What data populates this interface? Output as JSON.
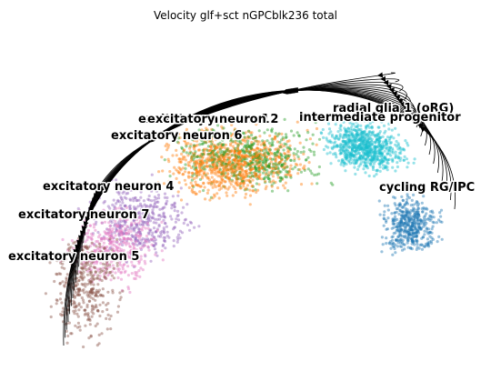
{
  "chart_data": {
    "type": "scatter",
    "title": "Velocity glf+sct nGPCblk236 total",
    "xlabel": "",
    "ylabel": "",
    "axes_visible": false,
    "grid": false,
    "legend": "on-data",
    "overlay": "velocity streamlines with arrowheads",
    "clusters": [
      {
        "name": "radial glia 1 (oRG)",
        "color": "#1fbecf",
        "center": [
          7.1,
          6.4
        ]
      },
      {
        "name": "intermediate progenitor",
        "color": "#17becf",
        "center": [
          7.5,
          6.1
        ]
      },
      {
        "name": "cycling RG/IPC",
        "color": "#1f77b4",
        "center": [
          8.2,
          4.0
        ]
      },
      {
        "name": "excitatory neuron 1",
        "color": "#ff7f0e",
        "center": [
          4.6,
          6.0
        ]
      },
      {
        "name": "excitatory neuron 2",
        "color": "#2ca02c",
        "center": [
          4.8,
          6.0
        ]
      },
      {
        "name": "excitatory neuron 6",
        "color": "#ff7f0e",
        "center": [
          4.4,
          5.6
        ]
      },
      {
        "name": "excitatory neuron 4",
        "color": "#9467bd",
        "center": [
          2.6,
          4.1
        ]
      },
      {
        "name": "excitatory neuron 7",
        "color": "#e377c2",
        "center": [
          2.0,
          3.3
        ]
      },
      {
        "name": "excitatory neuron 5",
        "color": "#8c564b",
        "center": [
          1.4,
          2.3
        ]
      }
    ]
  },
  "labels": [
    "radial glia 1 (oRG)",
    "intermediate progenitor",
    "excitatory neuron 1",
    "excitatory neuron 2",
    "excitatory neuron 6",
    "cycling RG/IPC",
    "excitatory neuron 4",
    "excitatory neuron 7",
    "excitatory neuron 5"
  ]
}
